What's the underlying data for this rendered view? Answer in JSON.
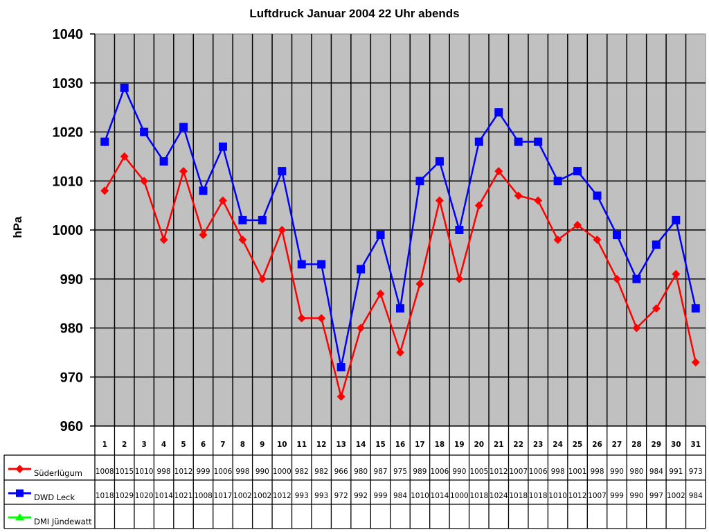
{
  "chart_data": {
    "type": "line",
    "title": "Luftdruck Januar 2004 22 Uhr abends",
    "xlabel": "",
    "ylabel": "hPa",
    "ylim": [
      960,
      1040
    ],
    "yticks": [
      960,
      970,
      980,
      990,
      1000,
      1010,
      1020,
      1030,
      1040
    ],
    "grid": true,
    "legend_position": "data-table-left",
    "categories": [
      1,
      2,
      3,
      4,
      5,
      6,
      7,
      8,
      9,
      10,
      11,
      12,
      13,
      14,
      15,
      16,
      17,
      18,
      19,
      20,
      21,
      22,
      23,
      24,
      25,
      26,
      27,
      28,
      29,
      30,
      31
    ],
    "series": [
      {
        "name": "Süderlügum",
        "color": "#ff0000",
        "marker": "diamond",
        "values": [
          1008,
          1015,
          1010,
          998,
          1012,
          999,
          1006,
          998,
          990,
          1000,
          982,
          982,
          966,
          980,
          987,
          975,
          989,
          1006,
          990,
          1005,
          1012,
          1007,
          1006,
          998,
          1001,
          998,
          990,
          980,
          984,
          991,
          973
        ]
      },
      {
        "name": "DWD Leck",
        "color": "#0000ff",
        "marker": "square",
        "values": [
          1018,
          1029,
          1020,
          1014,
          1021,
          1008,
          1017,
          1002,
          1002,
          1012,
          993,
          993,
          972,
          992,
          999,
          984,
          1010,
          1014,
          1000,
          1018,
          1024,
          1018,
          1018,
          1010,
          1012,
          1007,
          999,
          990,
          997,
          1002,
          984
        ]
      },
      {
        "name": "DMI Jündewatt",
        "color": "#00ff00",
        "marker": "triangle",
        "values": []
      }
    ]
  },
  "colors": {
    "plot_bg": "#c0c0c0",
    "grid": "#000000"
  }
}
